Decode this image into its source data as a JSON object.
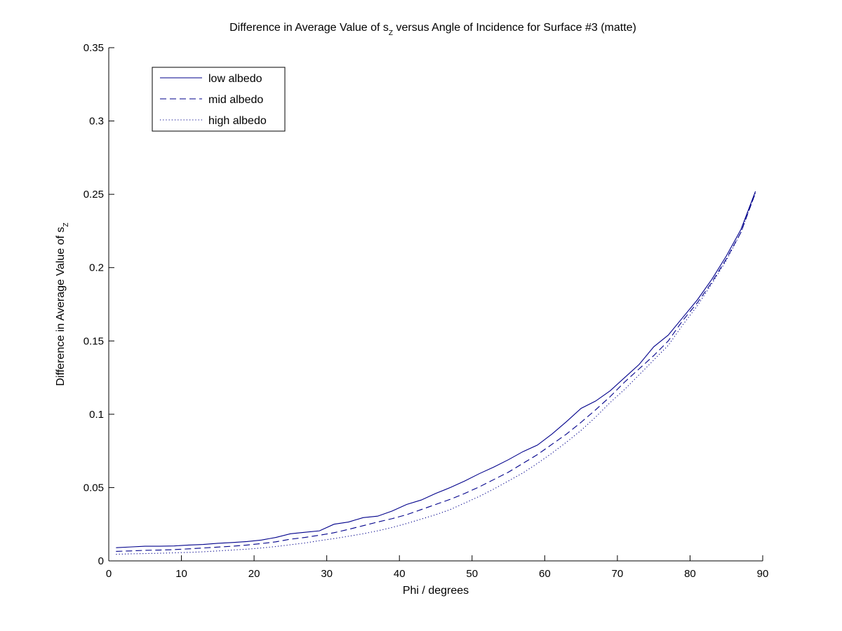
{
  "chart_data": {
    "type": "line",
    "title": {
      "prefix": "Difference in Average Value of s",
      "subscript": "Z",
      "suffix": " versus Angle of Incidence for Surface #3 (matte)"
    },
    "xlabel": "Phi / degrees",
    "ylabel": {
      "prefix": "Difference in Average Value of s",
      "subscript": "Z"
    },
    "xlim": [
      0,
      90
    ],
    "ylim": [
      0,
      0.35
    ],
    "xticks": [
      0,
      10,
      20,
      30,
      40,
      50,
      60,
      70,
      80,
      90
    ],
    "yticks": [
      0,
      0.05,
      0.1,
      0.15,
      0.2,
      0.25,
      0.3,
      0.35
    ],
    "xtick_labels": [
      "0",
      "10",
      "20",
      "30",
      "40",
      "50",
      "60",
      "70",
      "80",
      "90"
    ],
    "ytick_labels": [
      "0",
      "0.05",
      "0.1",
      "0.15",
      "0.2",
      "0.25",
      "0.3",
      "0.35"
    ],
    "grid": false,
    "legend_position": "top-left",
    "line_color": "#00008b",
    "x": [
      1,
      3,
      5,
      7,
      9,
      11,
      13,
      15,
      17,
      19,
      21,
      23,
      25,
      27,
      29,
      31,
      33,
      35,
      37,
      39,
      41,
      43,
      45,
      47,
      49,
      51,
      53,
      55,
      57,
      59,
      61,
      63,
      65,
      67,
      69,
      71,
      73,
      75,
      77,
      79,
      81,
      83,
      85,
      87,
      89
    ],
    "series": [
      {
        "name": "low albedo",
        "dash": "solid",
        "values": [
          0.009,
          0.0095,
          0.01,
          0.01,
          0.0102,
          0.0108,
          0.0112,
          0.012,
          0.0125,
          0.0132,
          0.0142,
          0.016,
          0.0185,
          0.0195,
          0.0205,
          0.025,
          0.0265,
          0.0295,
          0.0305,
          0.034,
          0.0385,
          0.0415,
          0.046,
          0.05,
          0.0545,
          0.0595,
          0.064,
          0.069,
          0.0745,
          0.079,
          0.0865,
          0.095,
          0.104,
          0.109,
          0.116,
          0.125,
          0.134,
          0.146,
          0.154,
          0.166,
          0.178,
          0.192,
          0.208,
          0.226,
          0.252
        ]
      },
      {
        "name": "mid albedo",
        "dash": "dashed",
        "values": [
          0.0065,
          0.0068,
          0.0072,
          0.0074,
          0.0077,
          0.0082,
          0.0088,
          0.0094,
          0.01,
          0.0108,
          0.0118,
          0.013,
          0.0148,
          0.016,
          0.0175,
          0.0192,
          0.0215,
          0.024,
          0.0265,
          0.0288,
          0.0315,
          0.035,
          0.0385,
          0.042,
          0.046,
          0.0505,
          0.0555,
          0.0605,
          0.0665,
          0.0725,
          0.0795,
          0.0865,
          0.0945,
          0.103,
          0.112,
          0.122,
          0.131,
          0.14,
          0.15,
          0.164,
          0.176,
          0.19,
          0.206,
          0.224,
          0.251
        ]
      },
      {
        "name": "high albedo",
        "dash": "dotted",
        "values": [
          0.0045,
          0.0048,
          0.005,
          0.0052,
          0.0055,
          0.0058,
          0.0062,
          0.0068,
          0.0074,
          0.008,
          0.0088,
          0.0098,
          0.011,
          0.0122,
          0.0138,
          0.0152,
          0.0168,
          0.0185,
          0.0205,
          0.0228,
          0.0255,
          0.0285,
          0.0315,
          0.035,
          0.0395,
          0.044,
          0.049,
          0.0545,
          0.06,
          0.0665,
          0.0735,
          0.081,
          0.089,
          0.098,
          0.108,
          0.117,
          0.127,
          0.137,
          0.147,
          0.161,
          0.174,
          0.189,
          0.205,
          0.224,
          0.251
        ]
      }
    ]
  }
}
